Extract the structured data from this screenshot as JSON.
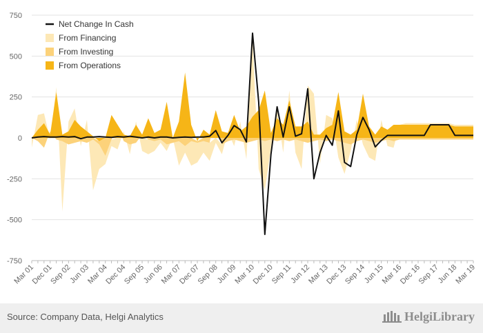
{
  "chart_data": {
    "type": "area",
    "xlabel": "",
    "ylabel": "",
    "ylim": [
      -750,
      750
    ],
    "yticks": [
      -750,
      -500,
      -250,
      0,
      250,
      500,
      750
    ],
    "grid": true,
    "legend_position": "top-left",
    "categories": [
      "Mar 01",
      "Jun 01",
      "Sep 01",
      "Dec 01",
      "Mar 02",
      "Jun 02",
      "Sep 02",
      "Dec 02",
      "Mar 03",
      "Jun 03",
      "Sep 03",
      "Dec 03",
      "Mar 04",
      "Jun 04",
      "Sep 04",
      "Dec 04",
      "Mar 05",
      "Jun 05",
      "Sep 05",
      "Dec 05",
      "Mar 06",
      "Jun 06",
      "Sep 06",
      "Dec 06",
      "Mar 07",
      "Jun 07",
      "Sep 07",
      "Dec 07",
      "Mar 08",
      "Jun 08",
      "Sep 08",
      "Dec 08",
      "Mar 09",
      "Jun 09",
      "Sep 09",
      "Dec 09",
      "Mar 10",
      "Jun 10",
      "Sep 10",
      "Dec 10",
      "Mar 11",
      "Jun 11",
      "Sep 11",
      "Dec 11",
      "Mar 12",
      "Jun 12",
      "Sep 12",
      "Dec 12",
      "Mar 13",
      "Jun 13",
      "Sep 13",
      "Dec 13",
      "Mar 14",
      "Jun 14",
      "Sep 14",
      "Dec 14",
      "Mar 15",
      "Jun 15",
      "Sep 15",
      "Dec 15",
      "Mar 16",
      "Jun 16",
      "Sep 16",
      "Dec 16",
      "Mar 17",
      "Jun 17",
      "Sep 17",
      "Dec 17",
      "Mar 18",
      "Jun 18",
      "Sep 18",
      "Dec 18",
      "Mar 19"
    ],
    "x_tick_labels": [
      "Mar 01",
      "Dec 01",
      "Sep 02",
      "Jun 03",
      "Mar 04",
      "Dec 04",
      "Sep 05",
      "Jun 06",
      "Mar 07",
      "Dec 07",
      "Sep 08",
      "Jun 09",
      "Mar 10",
      "Dec 10",
      "Sep 11",
      "Jun 12",
      "Mar 13",
      "Dec 13",
      "Sep 14",
      "Jun 15",
      "Mar 16",
      "Dec 16",
      "Sep 17",
      "Jun 18",
      "Mar 19"
    ],
    "series": [
      {
        "name": "Net Change In Cash",
        "kind": "line",
        "color": "#111111",
        "values": [
          0,
          5,
          8,
          5,
          5,
          8,
          5,
          8,
          -5,
          5,
          5,
          8,
          5,
          3,
          8,
          5,
          10,
          5,
          0,
          5,
          0,
          5,
          5,
          0,
          3,
          5,
          3,
          5,
          5,
          10,
          45,
          -30,
          15,
          75,
          50,
          -25,
          640,
          220,
          -590,
          -100,
          190,
          5,
          190,
          10,
          25,
          300,
          -250,
          -90,
          15,
          -45,
          165,
          -150,
          -175,
          20,
          125,
          50,
          -55,
          -15,
          15,
          15,
          15,
          15,
          15,
          15,
          15,
          80,
          80,
          80,
          80,
          15,
          15,
          15,
          15
        ],
        "series_note": ""
      },
      {
        "name": "From Financing",
        "kind": "area",
        "color": "#fde8b6",
        "values": [
          -60,
          90,
          60,
          -10,
          30,
          -430,
          60,
          70,
          -30,
          70,
          -310,
          -150,
          -50,
          -40,
          -70,
          20,
          -60,
          20,
          -80,
          -90,
          -60,
          -20,
          -40,
          0,
          -150,
          -40,
          -150,
          -120,
          -70,
          -110,
          -30,
          -60,
          10,
          -40,
          60,
          -100,
          470,
          -180,
          -300,
          -50,
          50,
          -80,
          60,
          -80,
          -170,
          220,
          250,
          -150,
          80,
          40,
          -100,
          -190,
          -40,
          60,
          -30,
          -100,
          -110,
          40,
          -40,
          -40,
          0,
          10,
          10,
          10,
          10,
          10,
          10,
          10,
          10,
          10,
          10,
          10,
          10
        ]
      },
      {
        "name": "From Investing",
        "kind": "area",
        "color": "#fcd27a",
        "values": [
          0,
          -20,
          -60,
          20,
          -10,
          -20,
          -40,
          -30,
          -20,
          -30,
          -10,
          -20,
          -110,
          -10,
          0,
          -20,
          -40,
          -30,
          0,
          -10,
          -20,
          -10,
          -40,
          -30,
          -20,
          -50,
          -20,
          -10,
          -20,
          -30,
          0,
          -40,
          -20,
          -10,
          -20,
          -30,
          -20,
          -10,
          -20,
          -10,
          -20,
          -10,
          -20,
          -10,
          -20,
          -30,
          -20,
          -10,
          -20,
          -10,
          -20,
          -30,
          -40,
          -20,
          -10,
          -20,
          -30,
          -20,
          -10,
          -20,
          -10,
          -10,
          -10,
          -10,
          -10,
          -10,
          -10,
          -10,
          -10,
          -10,
          -10,
          -10,
          -10
        ]
      },
      {
        "name": "From Operations",
        "kind": "area",
        "color": "#f6b517",
        "values": [
          0,
          50,
          90,
          20,
          280,
          20,
          40,
          110,
          70,
          40,
          10,
          -20,
          0,
          140,
          80,
          20,
          10,
          80,
          20,
          120,
          30,
          50,
          220,
          0,
          100,
          400,
          80,
          -20,
          50,
          20,
          170,
          40,
          30,
          140,
          40,
          70,
          130,
          170,
          290,
          30,
          120,
          80,
          230,
          70,
          70,
          100,
          20,
          20,
          60,
          80,
          280,
          40,
          20,
          50,
          270,
          70,
          20,
          70,
          50,
          80,
          80,
          80,
          80,
          80,
          80,
          80,
          80,
          80,
          80,
          70,
          70,
          70,
          70
        ]
      }
    ]
  },
  "footer": {
    "source_text": "Source: Company Data, Helgi Analytics",
    "brand_text": "HelgiLibrary"
  },
  "colors": {
    "grid": "#e3e3e3",
    "axis_text": "#666666",
    "zero_line": "#dddddd",
    "footer_bg": "#efefef"
  }
}
